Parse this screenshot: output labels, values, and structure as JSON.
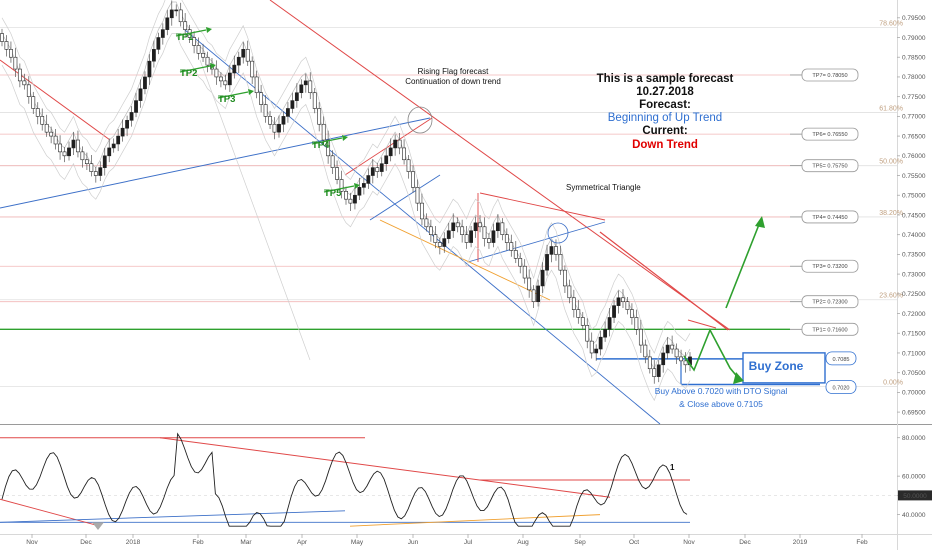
{
  "chart_data": [
    {
      "type": "candlestick",
      "yticks": [
        "0.79500",
        "0.79000",
        "0.78500",
        "0.78000",
        "0.77500",
        "0.77000",
        "0.76500",
        "0.76000",
        "0.75500",
        "0.75000",
        "0.74500",
        "0.74000",
        "0.73500",
        "0.73000",
        "0.72500",
        "0.72000",
        "0.71500",
        "0.71000",
        "0.70500",
        "0.70000",
        "0.69500"
      ],
      "xticks": [
        "Nov",
        "Dec",
        "2018",
        "Feb",
        "Mar",
        "Apr",
        "May",
        "Jun",
        "Jul",
        "Aug",
        "Sep",
        "Oct",
        "Nov",
        "Dec",
        "2019",
        "Feb"
      ],
      "ylim": [
        0.693,
        0.7985
      ],
      "fib_levels": [
        {
          "label": "78.60%",
          "value": 0.7925
        },
        {
          "label": "61.80%",
          "value": 0.771
        },
        {
          "label": "50.00%",
          "value": 0.7575
        },
        {
          "label": "38.20%",
          "value": 0.7445
        },
        {
          "label": "23.60%",
          "value": 0.7235
        },
        {
          "label": "0.00%",
          "value": 0.7015
        }
      ],
      "tp_levels": [
        {
          "label": "TP7= 0.78050",
          "value": 0.7805
        },
        {
          "label": "TP6= 0.76550",
          "value": 0.7655
        },
        {
          "label": "TP5= 0.75750",
          "value": 0.7575
        },
        {
          "label": "TP4= 0.74450",
          "value": 0.7445
        },
        {
          "label": "TP3= 0.73200",
          "value": 0.732
        },
        {
          "label": "TP2= 0.72300",
          "value": 0.723
        },
        {
          "label": "TP1= 0.71600",
          "value": 0.716
        }
      ],
      "buy_zone": {
        "upper": "0.7085",
        "lower": "0.7020",
        "upper_value": 0.7085,
        "lower_value": 0.702
      },
      "tp_markers": [
        "TP1",
        "TP2",
        "TP3",
        "TP4",
        "TP5"
      ],
      "annotations": {
        "rising_flag": "Rising Flag forecast",
        "continuation": "Continuation of down trend",
        "sym_triangle": "Symmetrical Triangle"
      },
      "forecast_box": {
        "line1": "This is a sample forecast",
        "line2": "10.27.2018",
        "line3": "Forecast:",
        "line4": "Beginning of Up Trend",
        "line5": "Current:",
        "line6": "Down Trend"
      },
      "buy_zone_label": "Buy Zone",
      "buy_text_1": "Buy Above 0.7020 with DTO Signal",
      "buy_text_2": "& Close above 0.7105",
      "closes": [
        0.789,
        0.787,
        0.785,
        0.782,
        0.779,
        0.778,
        0.775,
        0.772,
        0.77,
        0.768,
        0.766,
        0.765,
        0.763,
        0.761,
        0.76,
        0.762,
        0.764,
        0.761,
        0.759,
        0.758,
        0.756,
        0.755,
        0.757,
        0.76,
        0.762,
        0.763,
        0.765,
        0.767,
        0.769,
        0.771,
        0.774,
        0.777,
        0.78,
        0.784,
        0.787,
        0.79,
        0.792,
        0.795,
        0.797,
        0.797,
        0.794,
        0.792,
        0.79,
        0.788,
        0.786,
        0.785,
        0.783,
        0.782,
        0.78,
        0.779,
        0.778,
        0.781,
        0.783,
        0.785,
        0.787,
        0.784,
        0.78,
        0.776,
        0.773,
        0.77,
        0.768,
        0.766,
        0.768,
        0.77,
        0.772,
        0.774,
        0.776,
        0.778,
        0.779,
        0.776,
        0.772,
        0.768,
        0.764,
        0.76,
        0.757,
        0.754,
        0.751,
        0.749,
        0.748,
        0.75,
        0.752,
        0.753,
        0.755,
        0.757,
        0.756,
        0.758,
        0.76,
        0.762,
        0.764,
        0.762,
        0.759,
        0.756,
        0.752,
        0.748,
        0.744,
        0.742,
        0.74,
        0.738,
        0.737,
        0.739,
        0.741,
        0.743,
        0.742,
        0.74,
        0.738,
        0.741,
        0.743,
        0.742,
        0.739,
        0.738,
        0.741,
        0.743,
        0.74,
        0.738,
        0.736,
        0.734,
        0.732,
        0.729,
        0.726,
        0.723,
        0.727,
        0.731,
        0.735,
        0.737,
        0.735,
        0.731,
        0.727,
        0.724,
        0.721,
        0.719,
        0.717,
        0.713,
        0.71,
        0.711,
        0.714,
        0.716,
        0.719,
        0.722,
        0.724,
        0.723,
        0.721,
        0.719,
        0.716,
        0.712,
        0.709,
        0.706,
        0.704,
        0.707,
        0.71,
        0.712,
        0.711,
        0.709,
        0.708,
        0.707,
        0.709
      ],
      "ind_yticks": [
        "80.0000",
        "60.0000",
        "50.0000",
        "40.0000"
      ],
      "ind_ylim": [
        32,
        84
      ],
      "ind_value": 50,
      "ind_label": "1"
    }
  ]
}
